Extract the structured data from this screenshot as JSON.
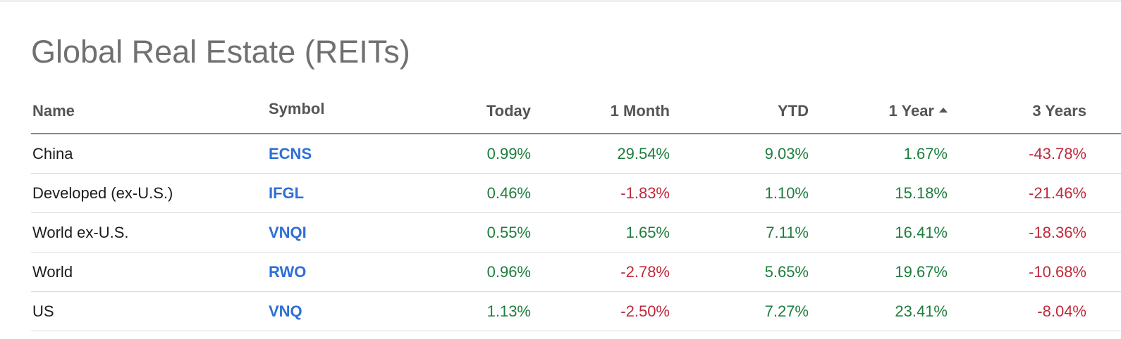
{
  "title": "Global Real Estate (REITs)",
  "columns": {
    "name": "Name",
    "symbol": "Symbol",
    "today": "Today",
    "month": "1 Month",
    "ytd": "YTD",
    "year1": "1 Year",
    "year3": "3 Years"
  },
  "sort": {
    "column": "1 Year",
    "direction": "ascending",
    "icon": "sort-up-arrow"
  },
  "colors": {
    "positive": "#1e7d3d",
    "negative": "#c0293a",
    "link": "#2f6fd6"
  },
  "rows": [
    {
      "name": "China",
      "symbol": "ECNS",
      "today": "0.99%",
      "month": "29.54%",
      "ytd": "9.03%",
      "year1": "1.67%",
      "year3": "-43.78%"
    },
    {
      "name": "Developed (ex-U.S.)",
      "symbol": "IFGL",
      "today": "0.46%",
      "month": "-1.83%",
      "ytd": "1.10%",
      "year1": "15.18%",
      "year3": "-21.46%"
    },
    {
      "name": "World ex-U.S.",
      "symbol": "VNQI",
      "today": "0.55%",
      "month": "1.65%",
      "ytd": "7.11%",
      "year1": "16.41%",
      "year3": "-18.36%"
    },
    {
      "name": "World",
      "symbol": "RWO",
      "today": "0.96%",
      "month": "-2.78%",
      "ytd": "5.65%",
      "year1": "19.67%",
      "year3": "-10.68%"
    },
    {
      "name": "US",
      "symbol": "VNQ",
      "today": "1.13%",
      "month": "-2.50%",
      "ytd": "7.27%",
      "year1": "23.41%",
      "year3": "-8.04%"
    }
  ]
}
